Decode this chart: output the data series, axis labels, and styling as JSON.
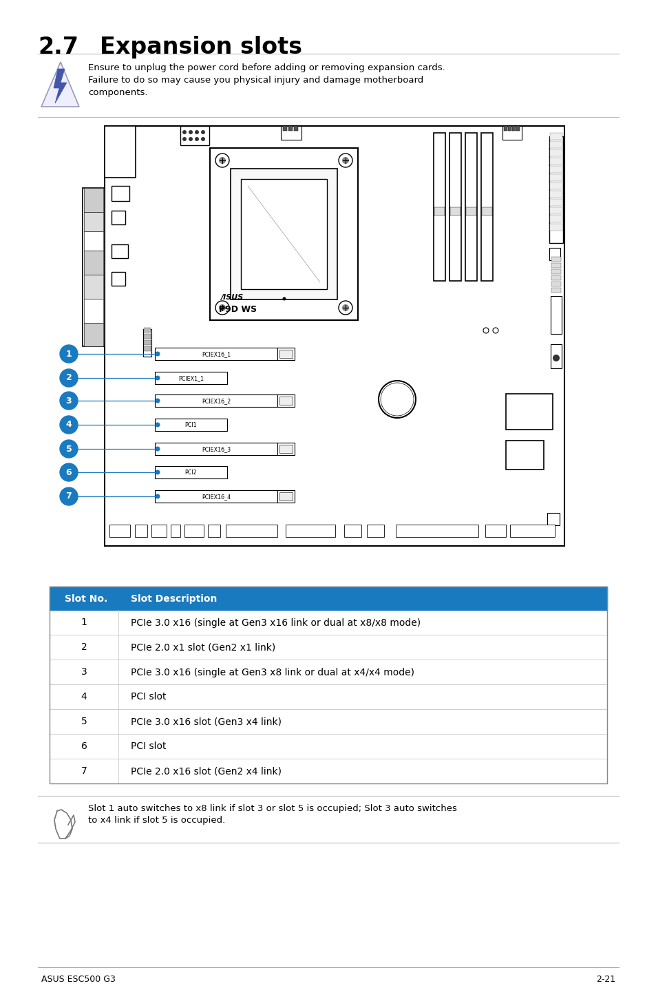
{
  "title_num": "2.7",
  "title_text": "Expansion slots",
  "bg_color": "#ffffff",
  "header_color": "#1a7abf",
  "warning_text_line1": "Ensure to unplug the power cord before adding or removing expansion cards.",
  "warning_text_line2": "Failure to do so may cause you physical injury and damage motherboard",
  "warning_text_line3": "components.",
  "note_text_line1": "Slot 1 auto switches to x8 link if slot 3 or slot 5 is occupied; Slot 3 auto switches",
  "note_text_line2": "to x4 link if slot 5 is occupied.",
  "table_header": [
    "Slot No.",
    "Slot Description"
  ],
  "table_rows": [
    [
      "1",
      "PCIe 3.0 x16 (single at Gen3 x16 link or dual at x8/x8 mode)"
    ],
    [
      "2",
      "PCIe 2.0 x1 slot (Gen2 x1 link)"
    ],
    [
      "3",
      "PCIe 3.0 x16 (single at Gen3 x8 link or dual at x4/x4 mode)"
    ],
    [
      "4",
      "PCI slot"
    ],
    [
      "5",
      "PCIe 3.0 x16 slot (Gen3 x4 link)"
    ],
    [
      "6",
      "PCI slot"
    ],
    [
      "7",
      "PCIe 2.0 x16 slot (Gen2 x4 link)"
    ]
  ],
  "footer_left": "ASUS ESC500 G3",
  "footer_right": "2-21",
  "circle_color": "#1a7abf",
  "line_color": "#1a7abf",
  "slot_configs": [
    {
      "label": "PCIEX16_1",
      "long": true
    },
    {
      "label": "PCIEX1_1",
      "long": false
    },
    {
      "label": "PCIEX16_2",
      "long": true
    },
    {
      "label": "PCI1",
      "long": false
    },
    {
      "label": "PCIEX16_3",
      "long": true
    },
    {
      "label": "PCI2",
      "long": false
    },
    {
      "label": "PCIEX16_4",
      "long": true
    }
  ]
}
